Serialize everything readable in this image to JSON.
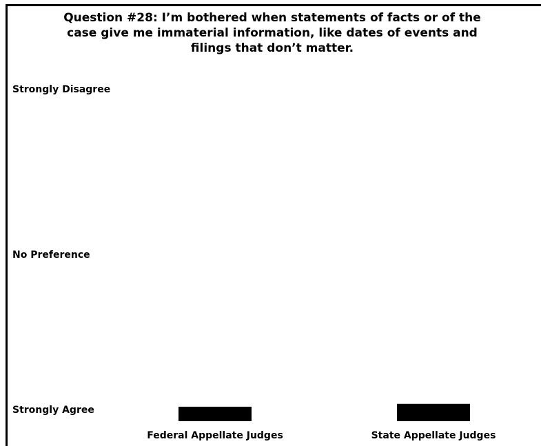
{
  "chart_data": {
    "type": "bar",
    "title": "Question #28: I’m bothered when statements of facts or of the case give me immaterial information, like dates of events and filings that don’t matter.",
    "categories": [
      "Federal Appellate Judges",
      "State Appellate Judges"
    ],
    "y_tick_labels": [
      "Strongly Disagree",
      "No Preference",
      "Strongly Agree"
    ],
    "values": [
      1.35,
      1.42
    ],
    "ylim": [
      1,
      5
    ],
    "grid": false,
    "legend": "none",
    "bar_color": "#000000"
  }
}
